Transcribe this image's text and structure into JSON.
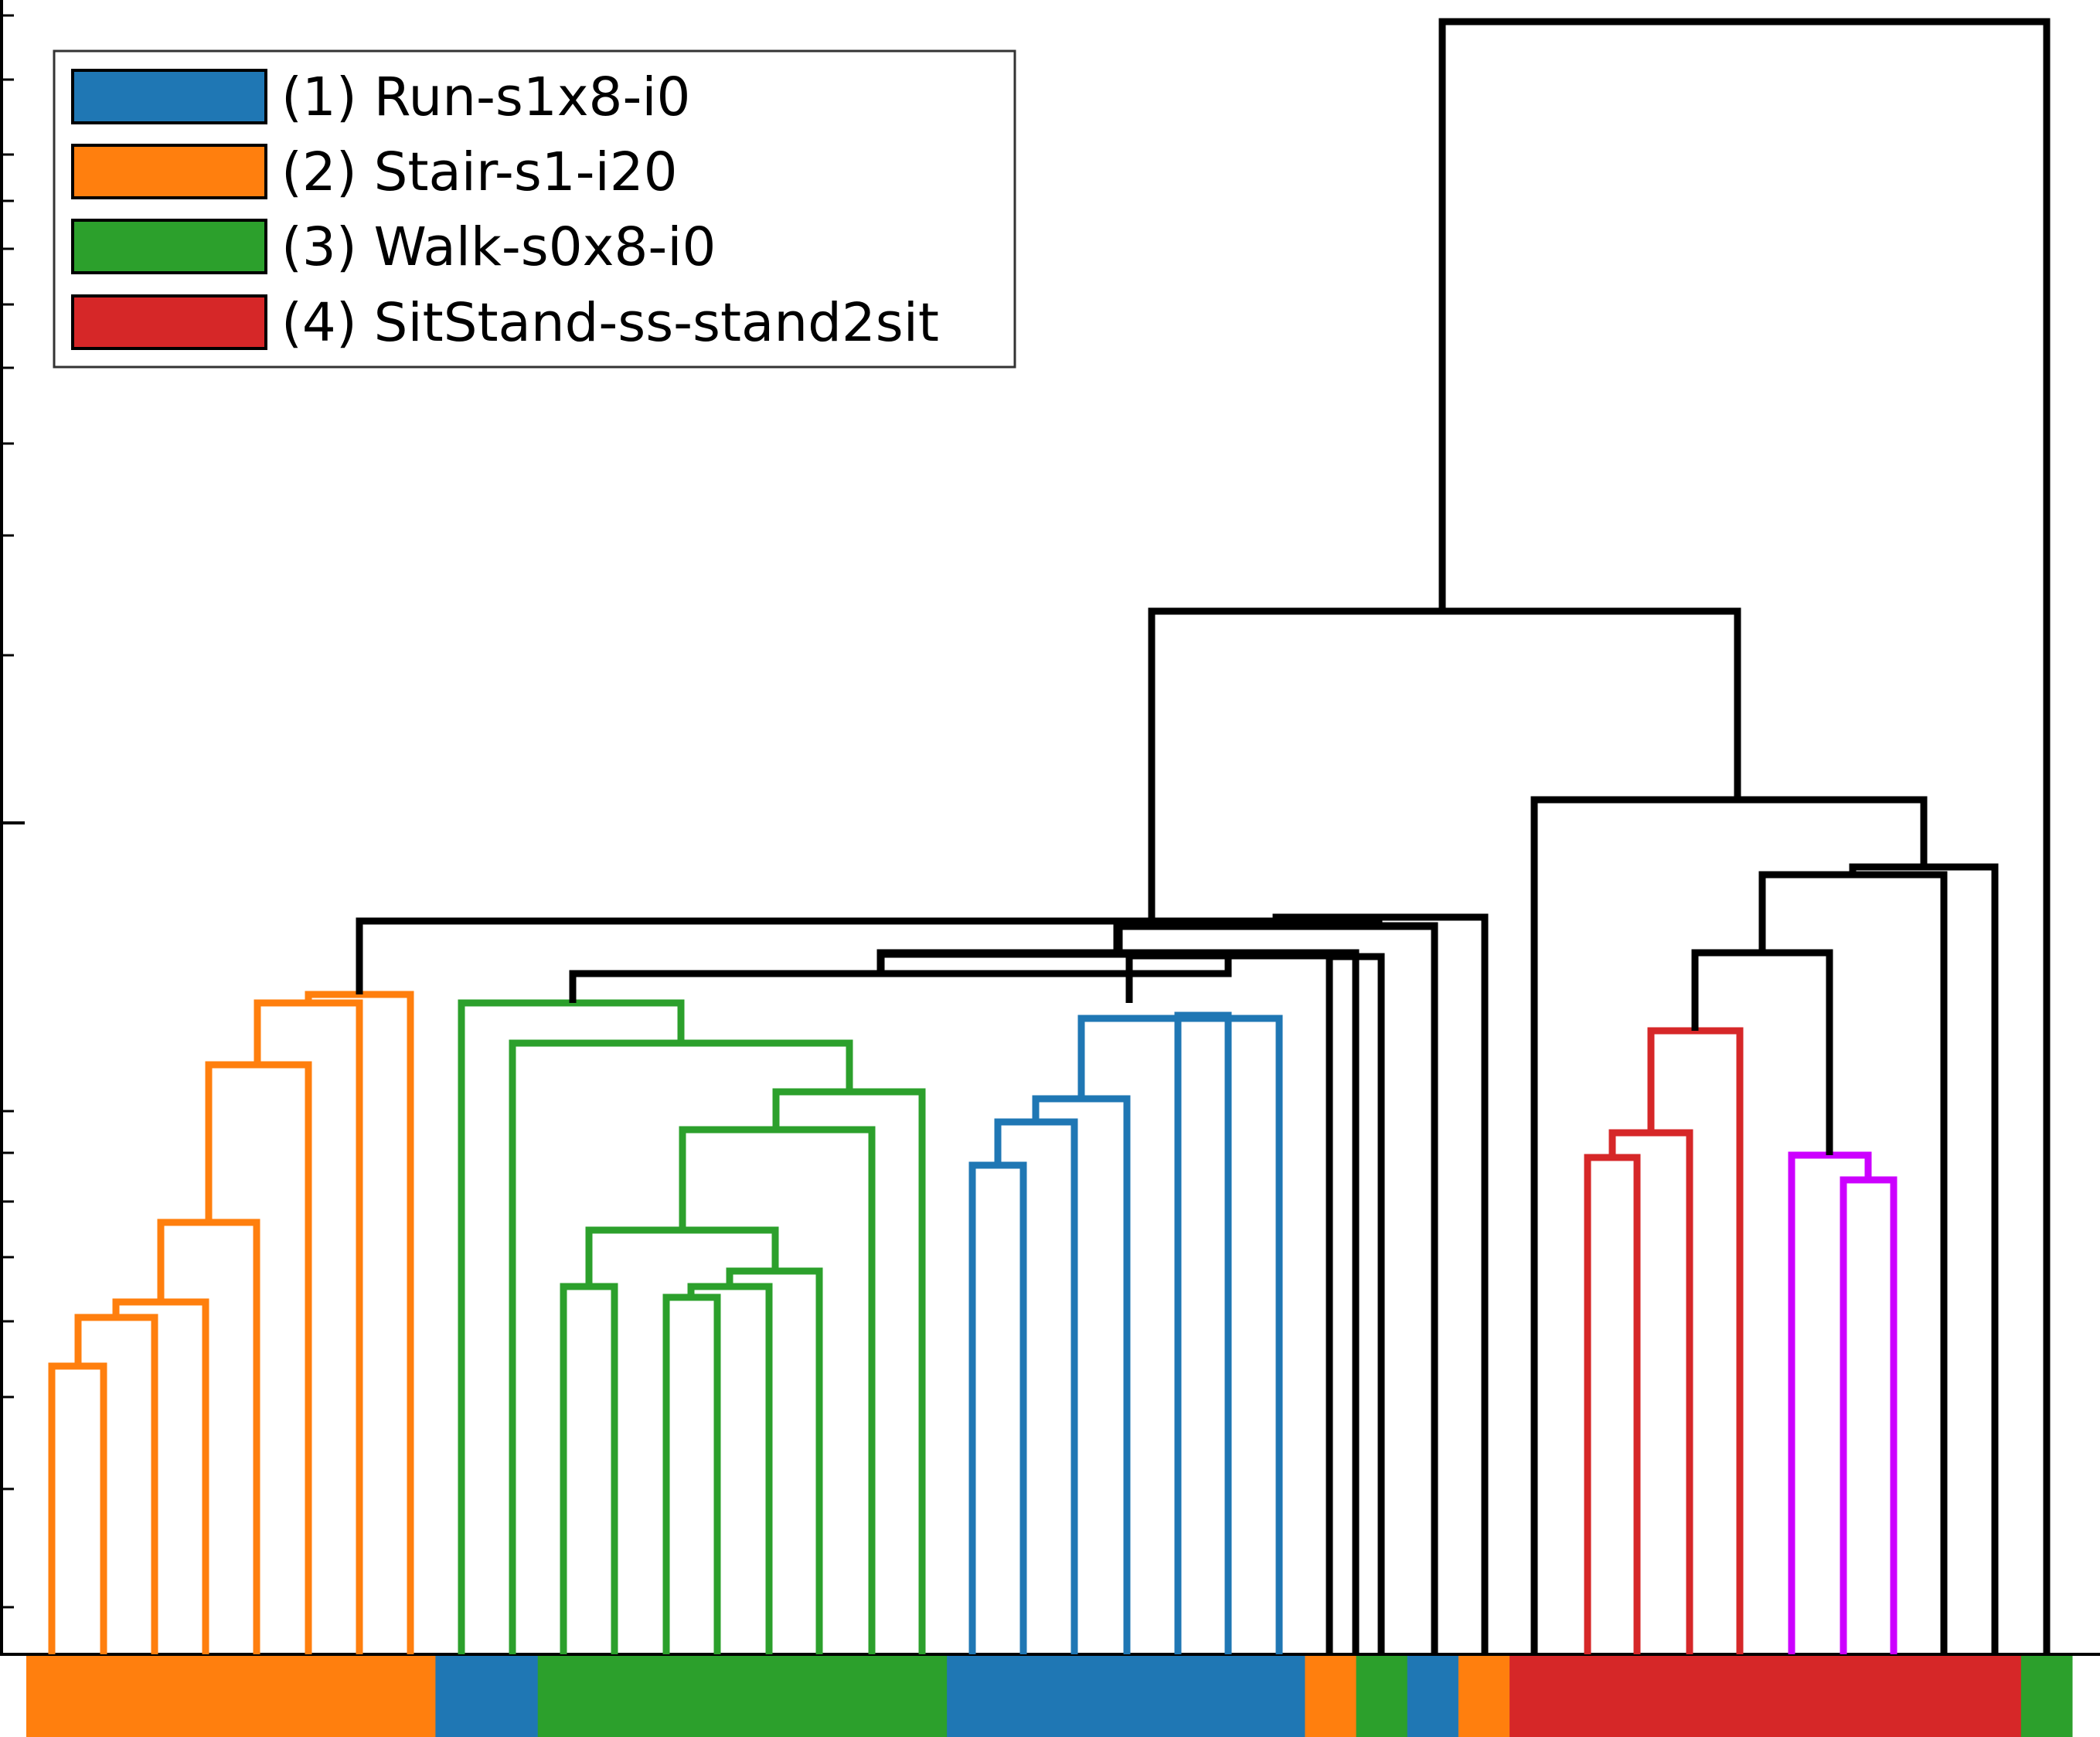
{
  "legend": {
    "items": [
      {
        "label": "(1) Run-s1x8-i0",
        "color": "#1f77b4"
      },
      {
        "label": "(2) Stair-s1-i20",
        "color": "#ff7f0e"
      },
      {
        "label": "(3) Walk-s0x8-i0",
        "color": "#2ca02c"
      },
      {
        "label": "(4) SitStand-ss-stand2sit",
        "color": "#d62728"
      }
    ]
  },
  "colors": {
    "run": "#1f77b4",
    "stair": "#ff7f0e",
    "walk": "#2ca02c",
    "sitstand": "#d62728",
    "subcluster": "#cc00ff",
    "link": "#000000"
  },
  "y_axis": {
    "scale": "log",
    "tick_labels": "not shown"
  },
  "bottom_strip": {
    "segments": [
      {
        "activity": "stair",
        "color": "#ff7f0e",
        "leaves": 8
      },
      {
        "activity": "run",
        "color": "#1f77b4",
        "leaves": 2
      },
      {
        "activity": "walk",
        "color": "#2ca02c",
        "leaves": 8
      },
      {
        "activity": "run",
        "color": "#1f77b4",
        "leaves": 7
      },
      {
        "activity": "stair",
        "color": "#ff7f0e",
        "leaves": 1
      },
      {
        "activity": "walk",
        "color": "#2ca02c",
        "leaves": 1
      },
      {
        "activity": "run",
        "color": "#1f77b4",
        "leaves": 1
      },
      {
        "activity": "stair",
        "color": "#ff7f0e",
        "leaves": 1
      },
      {
        "activity": "sitstand",
        "color": "#d62728",
        "leaves": 10
      },
      {
        "activity": "walk",
        "color": "#2ca02c",
        "leaves": 1
      }
    ]
  }
}
